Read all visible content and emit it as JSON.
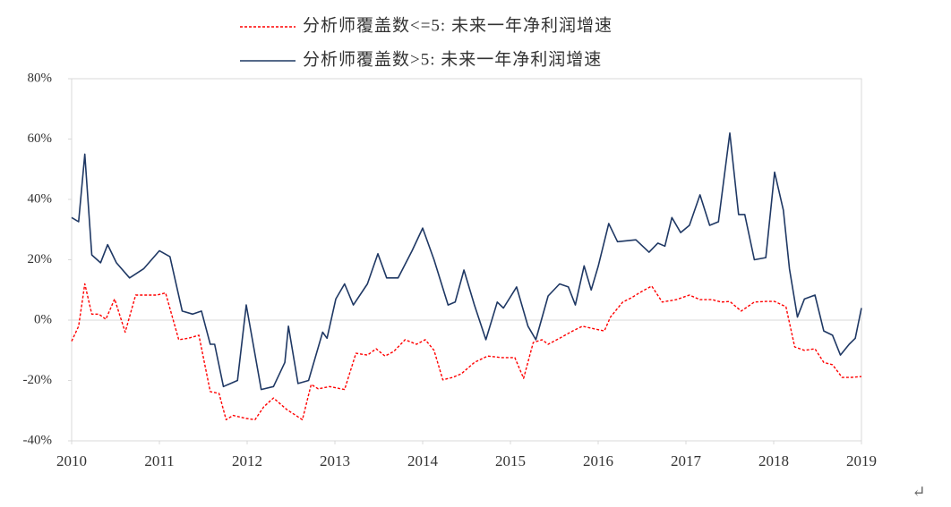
{
  "chart_data": {
    "type": "line",
    "xlim": [
      2010,
      2019
    ],
    "xticks": [
      2010,
      2011,
      2012,
      2013,
      2014,
      2015,
      2016,
      2017,
      2018,
      2019
    ],
    "ylim": [
      -40,
      80
    ],
    "yticks": [
      {
        "value": -40,
        "label": "-40%"
      },
      {
        "value": -20,
        "label": "-20%"
      },
      {
        "value": 0,
        "label": "0%"
      },
      {
        "value": 20,
        "label": "20%"
      },
      {
        "value": 40,
        "label": "40%"
      },
      {
        "value": 60,
        "label": "60%"
      },
      {
        "value": 80,
        "label": "80%"
      }
    ],
    "grid": false,
    "series": [
      {
        "name": "分析师覆盖数<=5:  未来一年净利润增速",
        "color": "#ff0000",
        "dash": true,
        "x": [
          2010.0,
          2010.08,
          2010.15,
          2010.23,
          2010.31,
          2010.39,
          2010.49,
          2010.61,
          2010.73,
          2010.87,
          2010.97,
          2011.07,
          2011.22,
          2011.33,
          2011.45,
          2011.58,
          2011.68,
          2011.76,
          2011.84,
          2011.99,
          2012.09,
          2012.19,
          2012.3,
          2012.45,
          2012.63,
          2012.73,
          2012.81,
          2012.94,
          2013.11,
          2013.24,
          2013.37,
          2013.47,
          2013.57,
          2013.67,
          2013.8,
          2013.93,
          2014.03,
          2014.13,
          2014.23,
          2014.34,
          2014.44,
          2014.59,
          2014.74,
          2014.9,
          2015.05,
          2015.15,
          2015.26,
          2015.36,
          2015.43,
          2015.56,
          2015.71,
          2015.82,
          2015.97,
          2016.07,
          2016.14,
          2016.28,
          2016.38,
          2016.48,
          2016.61,
          2016.73,
          2016.89,
          2017.04,
          2017.16,
          2017.3,
          2017.4,
          2017.5,
          2017.63,
          2017.78,
          2017.91,
          2018.01,
          2018.14,
          2018.24,
          2018.35,
          2018.47,
          2018.57,
          2018.67,
          2018.78,
          2018.88,
          2019.0
        ],
        "values": [
          -7,
          -2,
          12,
          2,
          2,
          0.3,
          7,
          -4,
          8.3,
          8.3,
          8.3,
          9,
          -6.5,
          -6,
          -5,
          -23.7,
          -24.3,
          -33,
          -31.6,
          -32.6,
          -33,
          -28.7,
          -25.8,
          -29.6,
          -33,
          -21.3,
          -22.8,
          -22,
          -23,
          -11,
          -11.6,
          -9.5,
          -11.9,
          -10.4,
          -6.5,
          -8,
          -6.5,
          -10,
          -19.8,
          -19,
          -17.8,
          -14,
          -11.9,
          -12.4,
          -12.4,
          -19.3,
          -7.4,
          -6.5,
          -8,
          -6,
          -3.6,
          -2,
          -3,
          -3.6,
          1,
          6,
          7.4,
          9.2,
          11.3,
          6,
          6.8,
          8.3,
          6.8,
          6.8,
          6,
          6.2,
          3,
          6,
          6.2,
          6.2,
          4.4,
          -8.9,
          -10,
          -9.5,
          -14,
          -14.8,
          -19,
          -19,
          -18.7
        ]
      },
      {
        "name": "分析师覆盖数>5:  未来一年净利润增速",
        "color": "#1f3864",
        "dash": false,
        "x": [
          2010.0,
          2010.08,
          2010.15,
          2010.23,
          2010.33,
          2010.41,
          2010.51,
          2010.66,
          2010.82,
          2011.0,
          2011.12,
          2011.26,
          2011.38,
          2011.48,
          2011.58,
          2011.63,
          2011.73,
          2011.89,
          2011.99,
          2012.16,
          2012.3,
          2012.43,
          2012.47,
          2012.58,
          2012.7,
          2012.86,
          2012.91,
          2013.01,
          2013.11,
          2013.21,
          2013.37,
          2013.49,
          2013.59,
          2013.72,
          2013.88,
          2014.0,
          2014.13,
          2014.29,
          2014.37,
          2014.47,
          2014.59,
          2014.72,
          2014.85,
          2014.92,
          2015.07,
          2015.2,
          2015.29,
          2015.43,
          2015.56,
          2015.66,
          2015.74,
          2015.84,
          2015.92,
          2016.0,
          2016.12,
          2016.22,
          2016.43,
          2016.58,
          2016.68,
          2016.76,
          2016.84,
          2016.94,
          2017.04,
          2017.16,
          2017.27,
          2017.37,
          2017.5,
          2017.6,
          2017.67,
          2017.78,
          2017.91,
          2018.01,
          2018.11,
          2018.18,
          2018.27,
          2018.35,
          2018.47,
          2018.57,
          2018.67,
          2018.76,
          2018.86,
          2018.93,
          2019.0
        ],
        "values": [
          34,
          32.6,
          55,
          21.6,
          19,
          25,
          19,
          14,
          17,
          23,
          21,
          3,
          2,
          3,
          -8,
          -8,
          -22,
          -20,
          5,
          -23,
          -22,
          -14,
          -2,
          -21,
          -20,
          -4,
          -6,
          7,
          12,
          5,
          12,
          22,
          14,
          14,
          23,
          30.5,
          20,
          5,
          6,
          16.6,
          5,
          -6.5,
          6,
          4,
          11,
          -2,
          -6.5,
          8,
          12,
          11,
          5,
          18,
          10,
          17.8,
          32,
          26,
          26.6,
          22.5,
          25.5,
          24.5,
          34,
          29,
          31.4,
          41.5,
          31.4,
          32.6,
          62,
          35,
          35,
          20,
          20.7,
          49,
          36.4,
          17,
          1,
          7,
          8.3,
          -3.6,
          -5,
          -11.6,
          -8,
          -6,
          4
        ]
      }
    ],
    "corner_mark": "↵"
  }
}
